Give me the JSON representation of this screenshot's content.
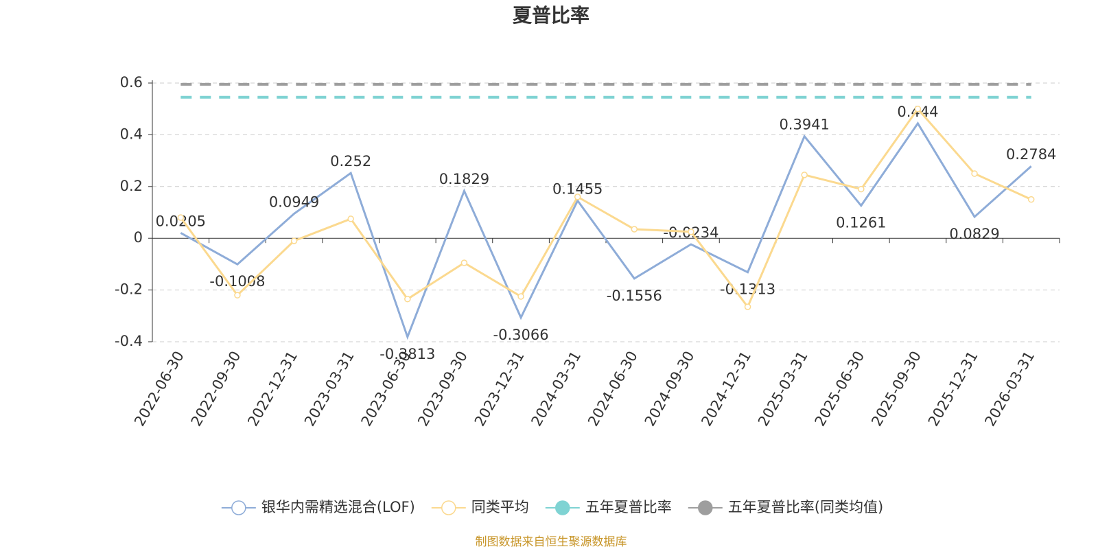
{
  "chart_data": {
    "type": "line",
    "title": "夏普比率",
    "categories": [
      "2022-06-30",
      "2022-09-30",
      "2022-12-31",
      "2023-03-31",
      "2023-06-30",
      "2023-09-30",
      "2023-12-31",
      "2024-03-31",
      "2024-06-30",
      "2024-09-30",
      "2024-12-31",
      "2025-03-31",
      "2025-06-30",
      "2025-09-30",
      "2025-12-31",
      "2026-03-31"
    ],
    "series": [
      {
        "name": "银华内需精选混合(LOF)",
        "color": "#8eacd8",
        "marker": "hollow",
        "labels": true,
        "values": [
          0.0205,
          -0.1008,
          0.0949,
          0.252,
          -0.3813,
          0.1829,
          -0.3066,
          0.1455,
          -0.1556,
          -0.0234,
          -0.1313,
          0.3941,
          0.1261,
          0.444,
          0.0829,
          0.2784
        ]
      },
      {
        "name": "同类平均",
        "color": "#fbd98f",
        "marker": "hollow",
        "values": [
          0.08,
          -0.22,
          -0.01,
          0.075,
          -0.235,
          -0.095,
          -0.225,
          0.16,
          0.035,
          0.025,
          -0.265,
          0.245,
          0.19,
          0.5,
          0.25,
          0.15
        ]
      },
      {
        "name": "五年夏普比率",
        "color": "#7fd3d3",
        "marker": "filled",
        "dashed": true,
        "values": [
          0.545,
          0.545,
          0.545,
          0.545,
          0.545,
          0.545,
          0.545,
          0.545,
          0.545,
          0.545,
          0.545,
          0.545,
          0.545,
          0.545,
          0.545,
          0.545
        ]
      },
      {
        "name": "五年夏普比率(同类均值)",
        "color": "#9e9e9e",
        "marker": "filled",
        "dashed": true,
        "values": [
          0.595,
          0.595,
          0.595,
          0.595,
          0.595,
          0.595,
          0.595,
          0.595,
          0.595,
          0.595,
          0.595,
          0.595,
          0.595,
          0.595,
          0.595,
          0.595
        ]
      }
    ],
    "ylim": [
      -0.4,
      0.6
    ],
    "yticks": [
      -0.4,
      -0.2,
      0,
      0.2,
      0.4,
      0.6
    ],
    "grid": true,
    "legend": "bottom",
    "source": "制图数据来自恒生聚源数据库"
  }
}
